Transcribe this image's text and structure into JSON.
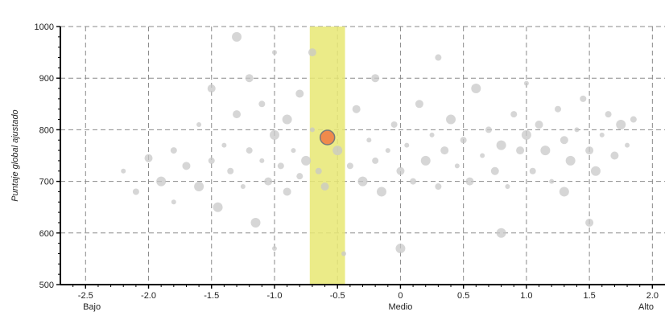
{
  "chart_data": {
    "type": "scatter",
    "title": "",
    "xlabel": "",
    "ylabel": "Puntaje global ajustado",
    "xlim": [
      -2.7,
      2.1
    ],
    "ylim": [
      500,
      1000
    ],
    "x_ticks": [
      -2.5,
      -2.0,
      -1.5,
      -1.0,
      -0.5,
      0,
      0.5,
      1.0,
      1.5,
      2.0
    ],
    "x_tick_labels": [
      "-2.5",
      "-2.0",
      "-1.5",
      "-1.0",
      "-0.5",
      "0",
      "0.5",
      "1.0",
      "1.5",
      "2.0"
    ],
    "y_ticks": [
      500,
      600,
      700,
      800,
      900,
      1000
    ],
    "y_tick_labels": [
      "500",
      "600",
      "700",
      "800",
      "900",
      "1000"
    ],
    "x_category_labels": [
      {
        "x": -2.45,
        "label": "Bajo"
      },
      {
        "x": 0,
        "label": "Medio"
      },
      {
        "x": 1.95,
        "label": "Alto"
      }
    ],
    "grid": true,
    "highlight_band": {
      "x_range": [
        -0.72,
        -0.44
      ],
      "y_range": [
        500,
        1000
      ],
      "color": "#e8e873"
    },
    "highlight_point": {
      "x": -0.58,
      "y": 785,
      "color": "#f08a4b"
    },
    "background_points": {
      "color": "#c8c8c8",
      "series": [
        {
          "x": -2.2,
          "y": 720
        },
        {
          "x": -2.1,
          "y": 680
        },
        {
          "x": -2.0,
          "y": 745
        },
        {
          "x": -1.9,
          "y": 700
        },
        {
          "x": -1.8,
          "y": 660
        },
        {
          "x": -1.8,
          "y": 760
        },
        {
          "x": -1.7,
          "y": 730
        },
        {
          "x": -1.6,
          "y": 690
        },
        {
          "x": -1.6,
          "y": 810
        },
        {
          "x": -1.5,
          "y": 740
        },
        {
          "x": -1.5,
          "y": 880
        },
        {
          "x": -1.45,
          "y": 650
        },
        {
          "x": -1.4,
          "y": 770
        },
        {
          "x": -1.35,
          "y": 720
        },
        {
          "x": -1.3,
          "y": 830
        },
        {
          "x": -1.3,
          "y": 980
        },
        {
          "x": -1.25,
          "y": 690
        },
        {
          "x": -1.2,
          "y": 760
        },
        {
          "x": -1.2,
          "y": 900
        },
        {
          "x": -1.15,
          "y": 620
        },
        {
          "x": -1.1,
          "y": 740
        },
        {
          "x": -1.1,
          "y": 850
        },
        {
          "x": -1.05,
          "y": 700
        },
        {
          "x": -1.0,
          "y": 790
        },
        {
          "x": -1.0,
          "y": 950
        },
        {
          "x": -0.95,
          "y": 730
        },
        {
          "x": -0.9,
          "y": 680
        },
        {
          "x": -0.9,
          "y": 820
        },
        {
          "x": -0.85,
          "y": 760
        },
        {
          "x": -0.8,
          "y": 710
        },
        {
          "x": -0.8,
          "y": 870
        },
        {
          "x": -0.75,
          "y": 740
        },
        {
          "x": -0.7,
          "y": 800
        },
        {
          "x": -0.65,
          "y": 720
        },
        {
          "x": -0.6,
          "y": 690
        },
        {
          "x": -0.5,
          "y": 760
        },
        {
          "x": -0.45,
          "y": 560
        },
        {
          "x": -0.4,
          "y": 730
        },
        {
          "x": -0.35,
          "y": 840
        },
        {
          "x": -0.3,
          "y": 700
        },
        {
          "x": -0.25,
          "y": 780
        },
        {
          "x": -0.2,
          "y": 740
        },
        {
          "x": -0.2,
          "y": 900
        },
        {
          "x": -0.15,
          "y": 680
        },
        {
          "x": -0.1,
          "y": 760
        },
        {
          "x": -0.05,
          "y": 810
        },
        {
          "x": 0.0,
          "y": 720
        },
        {
          "x": 0.0,
          "y": 570
        },
        {
          "x": 0.05,
          "y": 770
        },
        {
          "x": 0.1,
          "y": 700
        },
        {
          "x": 0.15,
          "y": 850
        },
        {
          "x": 0.2,
          "y": 740
        },
        {
          "x": 0.25,
          "y": 790
        },
        {
          "x": 0.3,
          "y": 690
        },
        {
          "x": 0.35,
          "y": 760
        },
        {
          "x": 0.4,
          "y": 820
        },
        {
          "x": 0.45,
          "y": 730
        },
        {
          "x": 0.5,
          "y": 780
        },
        {
          "x": 0.55,
          "y": 700
        },
        {
          "x": 0.6,
          "y": 880
        },
        {
          "x": 0.65,
          "y": 750
        },
        {
          "x": 0.7,
          "y": 800
        },
        {
          "x": 0.75,
          "y": 720
        },
        {
          "x": 0.8,
          "y": 770
        },
        {
          "x": 0.85,
          "y": 690
        },
        {
          "x": 0.9,
          "y": 830
        },
        {
          "x": 0.95,
          "y": 760
        },
        {
          "x": 1.0,
          "y": 790
        },
        {
          "x": 1.0,
          "y": 890
        },
        {
          "x": 1.05,
          "y": 720
        },
        {
          "x": 1.1,
          "y": 810
        },
        {
          "x": 1.15,
          "y": 760
        },
        {
          "x": 1.2,
          "y": 700
        },
        {
          "x": 1.25,
          "y": 840
        },
        {
          "x": 1.3,
          "y": 780
        },
        {
          "x": 1.35,
          "y": 740
        },
        {
          "x": 1.4,
          "y": 800
        },
        {
          "x": 1.45,
          "y": 860
        },
        {
          "x": 1.5,
          "y": 760
        },
        {
          "x": 1.55,
          "y": 720
        },
        {
          "x": 1.6,
          "y": 790
        },
        {
          "x": 1.65,
          "y": 830
        },
        {
          "x": 1.7,
          "y": 750
        },
        {
          "x": 1.75,
          "y": 810
        },
        {
          "x": 1.8,
          "y": 770
        },
        {
          "x": 1.85,
          "y": 820
        },
        {
          "x": 1.5,
          "y": 620
        },
        {
          "x": 0.8,
          "y": 600
        },
        {
          "x": -1.0,
          "y": 570
        },
        {
          "x": 0.3,
          "y": 940
        },
        {
          "x": -0.7,
          "y": 950
        },
        {
          "x": 1.3,
          "y": 680
        }
      ]
    }
  }
}
